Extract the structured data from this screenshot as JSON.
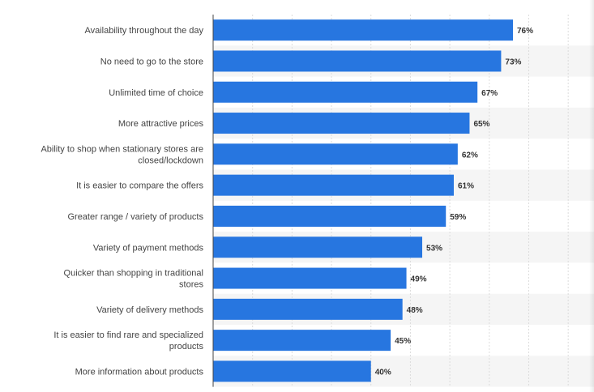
{
  "chart_data": {
    "type": "bar",
    "orientation": "horizontal",
    "title": "",
    "xlabel": "",
    "ylabel": "",
    "xlim": [
      0,
      90
    ],
    "grid": true,
    "value_suffix": "%",
    "bar_color": "#2776e0",
    "band_color": "#f5f5f5",
    "grid_color": "#dcdcdc",
    "axis_color": "#444444",
    "categories": [
      [
        "Availability throughout the day"
      ],
      [
        "No need to go to the store"
      ],
      [
        "Unlimited time of choice"
      ],
      [
        "More attractive prices"
      ],
      [
        "Ability to shop when stationary stores are",
        "closed/lockdown"
      ],
      [
        "It is easier to compare the offers"
      ],
      [
        "Greater range / variety of products"
      ],
      [
        "Variety of payment methods"
      ],
      [
        "Quicker than shopping in traditional",
        "stores"
      ],
      [
        "Variety of delivery methods"
      ],
      [
        "It is easier to find rare and specialized",
        "products"
      ],
      [
        "More information about products"
      ]
    ],
    "values": [
      76,
      73,
      67,
      65,
      62,
      61,
      59,
      53,
      49,
      48,
      45,
      40
    ]
  }
}
